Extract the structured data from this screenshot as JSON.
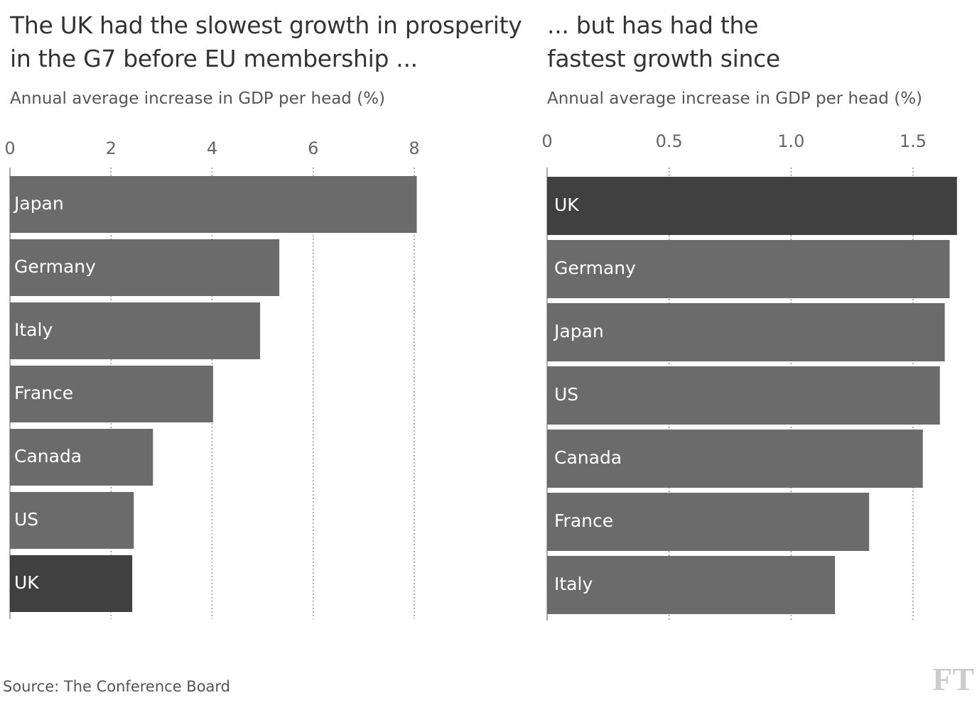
{
  "chart_data": [
    {
      "type": "bar",
      "orientation": "horizontal",
      "title": "The UK had the slowest growth in prosperity in the G7 before EU membership ...",
      "subtitle": "Annual average increase in GDP per head (%)",
      "categories": [
        "Japan",
        "Germany",
        "Italy",
        "France",
        "Canada",
        "US",
        "UK"
      ],
      "values": [
        8.05,
        5.33,
        4.95,
        4.02,
        2.83,
        2.45,
        2.42
      ],
      "colors": [
        "#6b6b6b",
        "#6b6b6b",
        "#6b6b6b",
        "#6b6b6b",
        "#6b6b6b",
        "#6b6b6b",
        "#404040"
      ],
      "xlim": [
        0,
        8
      ],
      "xticks": [
        0,
        2,
        4,
        6,
        8
      ],
      "grid": true
    },
    {
      "type": "bar",
      "orientation": "horizontal",
      "title": "... but has had the fastest growth since",
      "subtitle": "Annual average increase in GDP per head (%)",
      "categories": [
        "UK",
        "Germany",
        "Japan",
        "US",
        "Canada",
        "France",
        "Italy"
      ],
      "values": [
        1.68,
        1.65,
        1.63,
        1.61,
        1.54,
        1.32,
        1.18
      ],
      "colors": [
        "#404040",
        "#6b6b6b",
        "#6b6b6b",
        "#6b6b6b",
        "#6b6b6b",
        "#6b6b6b",
        "#6b6b6b"
      ],
      "xlim": [
        0,
        1.68
      ],
      "xticks": [
        0,
        0.5,
        {
          "value": 1,
          "label": "1.0"
        },
        1.5
      ],
      "grid": true
    }
  ],
  "source": "Source: The Conference Board",
  "logo": "FT"
}
